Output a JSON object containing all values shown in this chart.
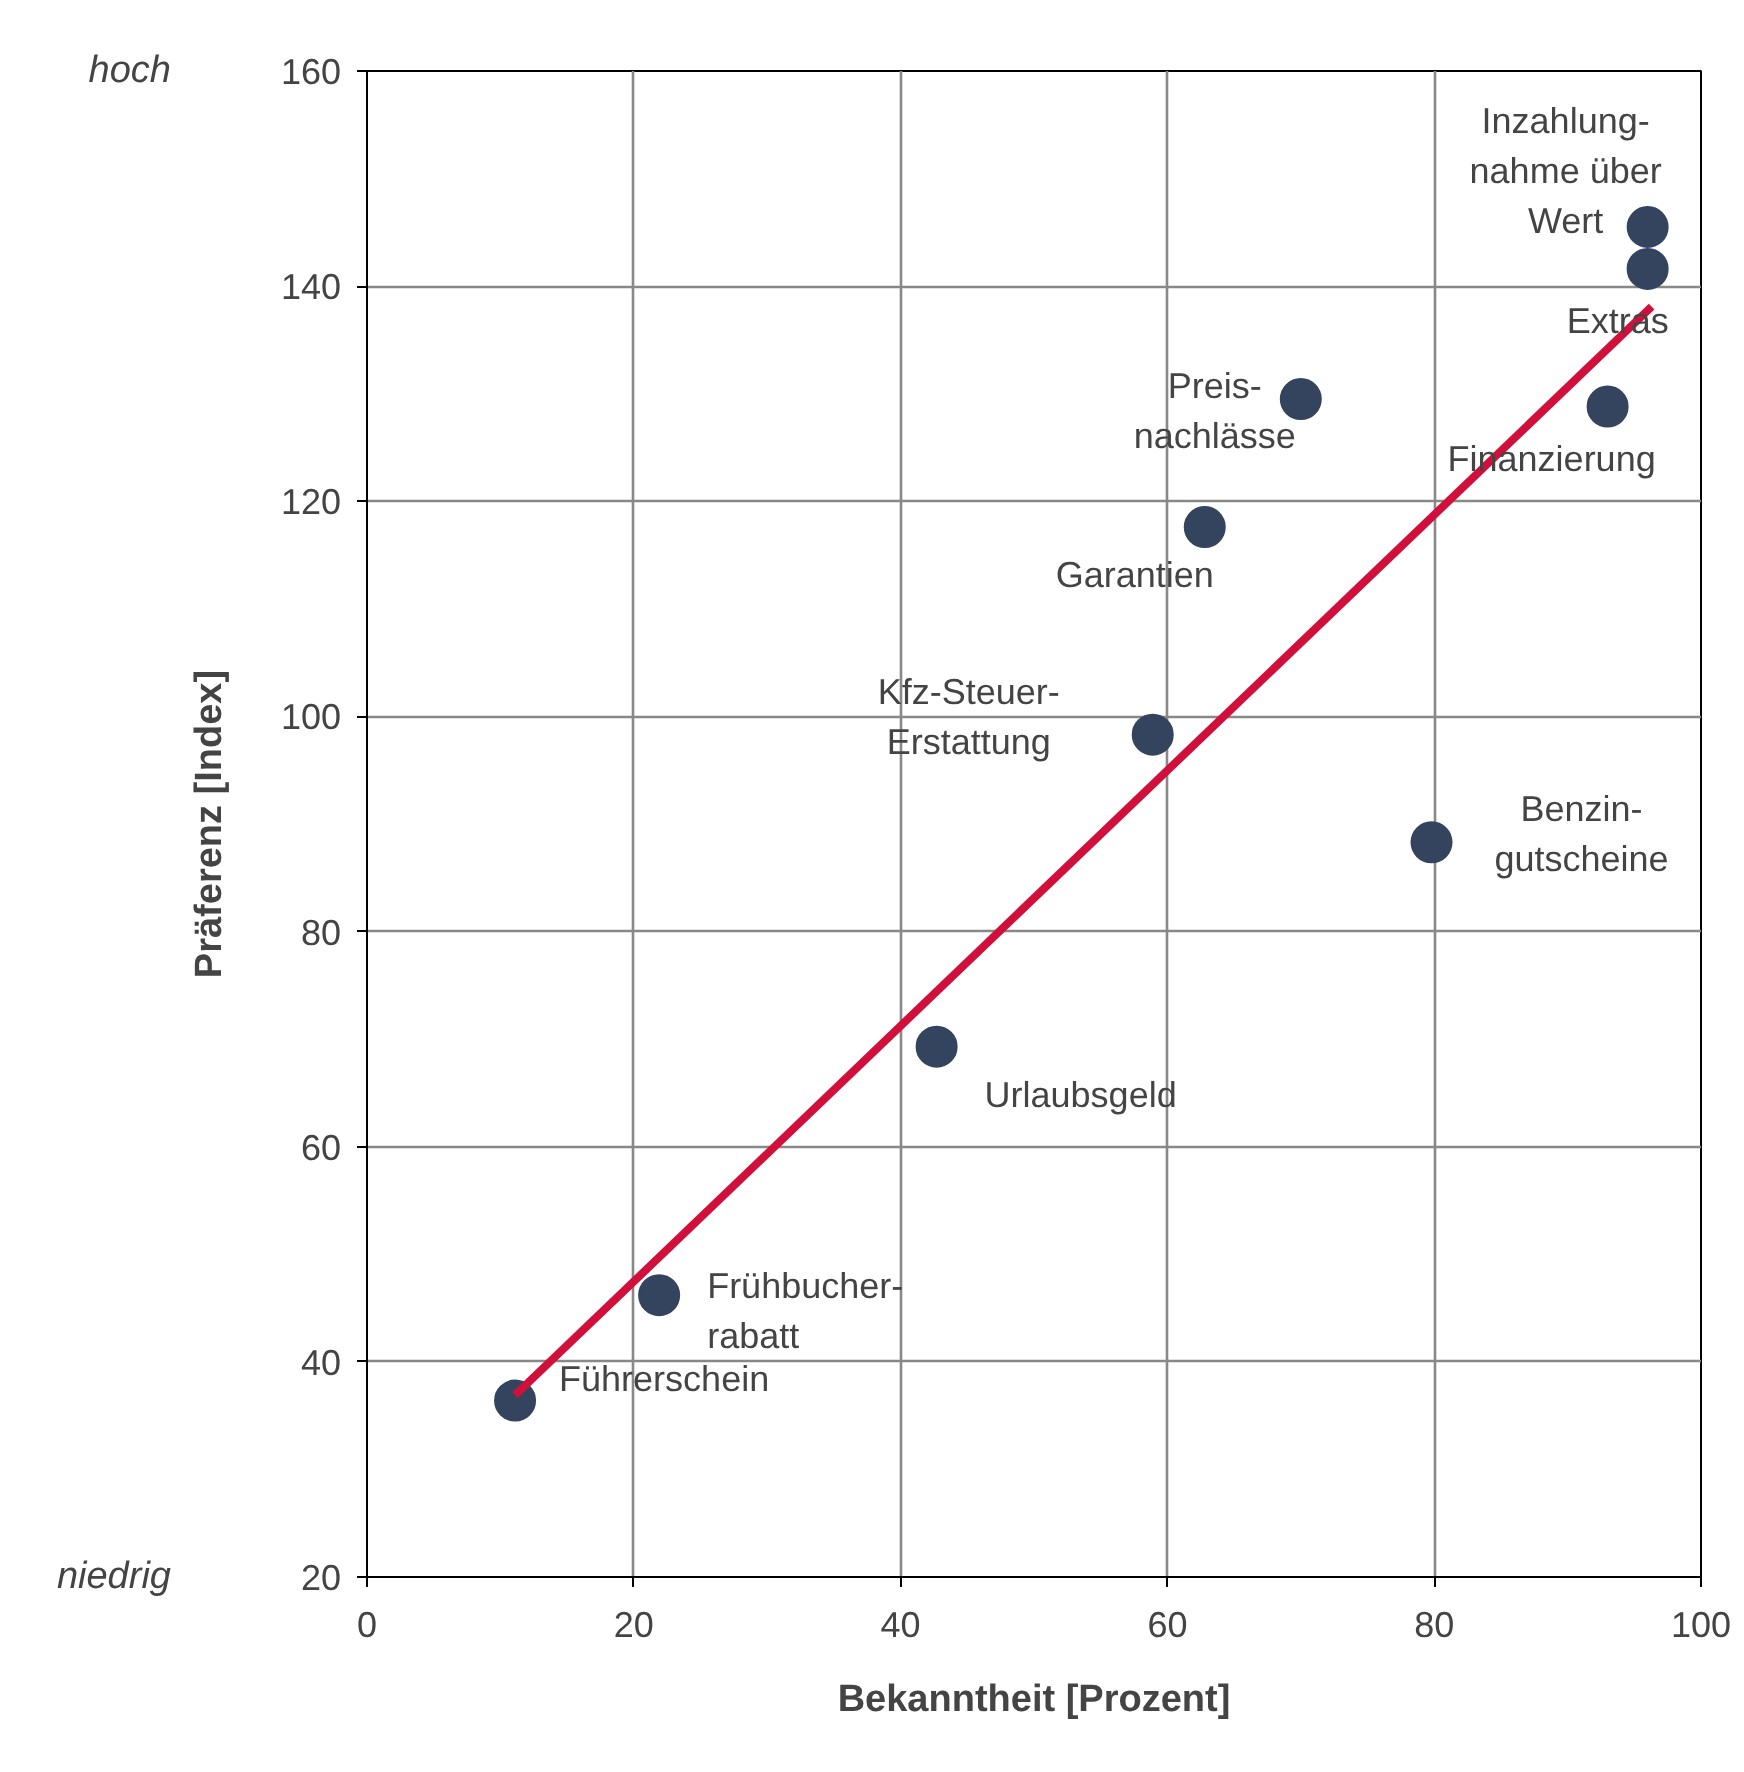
{
  "chart_data": {
    "type": "scatter",
    "xlabel": "Bekanntheit [Prozent]",
    "ylabel": "Präferenz [Index]",
    "xlim": [
      0,
      100
    ],
    "xticks": [
      0,
      20,
      40,
      60,
      80,
      100
    ],
    "ylim": [
      20,
      160
    ],
    "yticks": [
      20,
      40,
      60,
      80,
      100,
      120,
      140,
      160
    ],
    "grid": true,
    "marker": "circle",
    "series": [
      {
        "color": "#34445f",
        "x": [
          11.1,
          21.9,
          42.7,
          58.9,
          62.8,
          70,
          79.8,
          93,
          96,
          96
        ],
        "values": [
          36.4,
          46.2,
          69.3,
          98.3,
          117.6,
          129.5,
          88.3,
          128.8,
          141.6,
          145.5
        ]
      },
      {
        "type": "line",
        "marker": "none",
        "color": "#d0103a",
        "line_style": "solid",
        "x": [
          11.1,
          96.3
        ],
        "values": [
          36.9,
          138.1
        ]
      }
    ],
    "annotations": [
      "hoch",
      "niedrig",
      {
        "text": "Führerschein",
        "x": 11.1,
        "y": 36.4
      },
      {
        "text": "Frühbucher-\nrabatt",
        "x": 21.9,
        "y": 46.2
      },
      {
        "text": "Urlaubsgeld",
        "x": 42.7,
        "y": 69.3
      },
      {
        "text": "Kfz-Steuer-\nErstattung",
        "x": 58.9,
        "y": 98.3
      },
      {
        "text": "Garantien",
        "x": 62.8,
        "y": 117.6
      },
      {
        "text": "Preis-\nnachlässe",
        "x": 70,
        "y": 129.5
      },
      {
        "text": "Benzin-\ngutscheine",
        "x": 79.8,
        "y": 88.3
      },
      {
        "text": "Finanzierung",
        "x": 93,
        "y": 128.8
      },
      {
        "text": "Extras",
        "x": 96,
        "y": 141.6
      },
      {
        "text": "Inzahlung-\nnahme über\nWert",
        "x": 96,
        "y": 145.5
      }
    ]
  }
}
